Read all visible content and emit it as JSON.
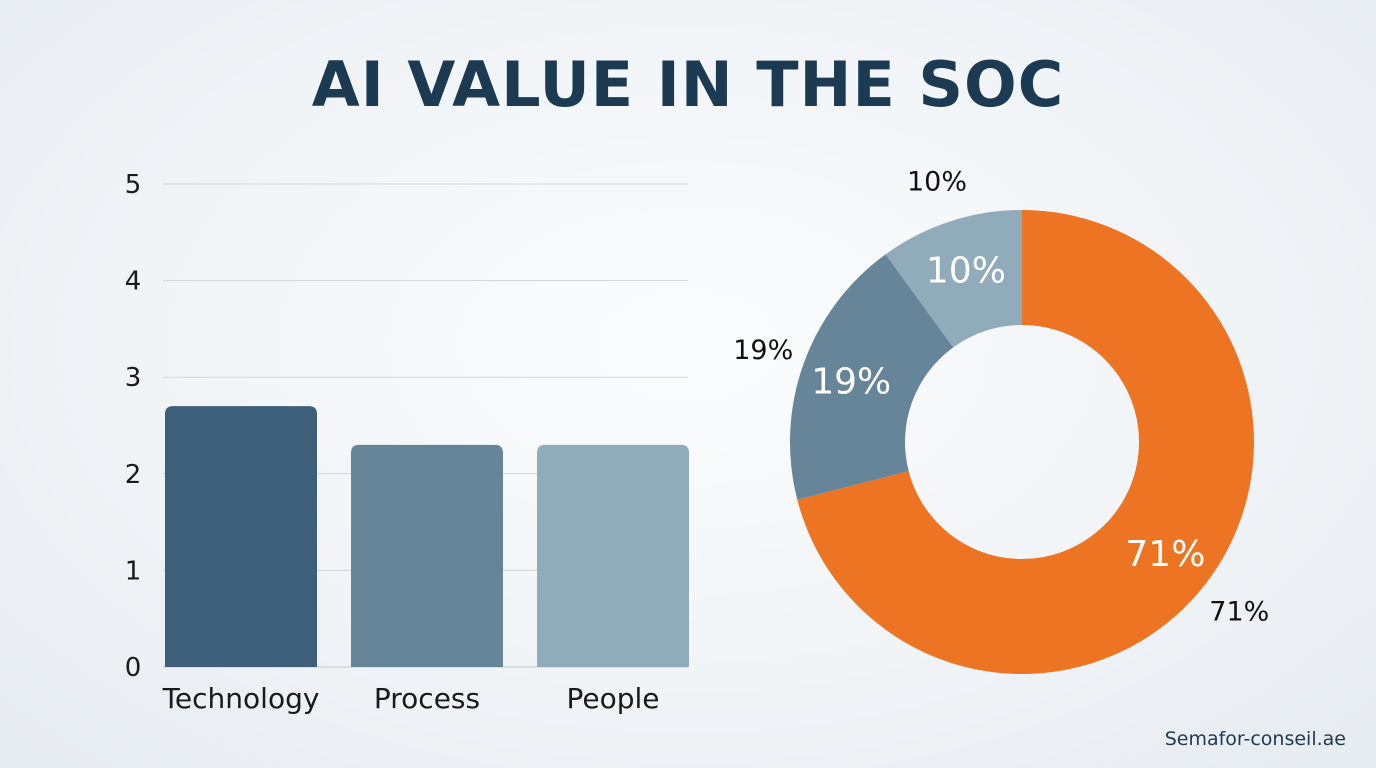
{
  "title": "AI VALUE IN THE SOC",
  "footer": "Semafor-conseil.ae",
  "colors": {
    "title": "#1c3a52",
    "bar_technology": "#3e5f7a",
    "bar_process": "#678599",
    "bar_people": "#90abba",
    "slice_orange": "#ed7423",
    "slice_mid": "#678599",
    "slice_light": "#90abba",
    "grid": "#cfd6dc"
  },
  "chart_data": [
    {
      "type": "bar",
      "categories": [
        "Technology",
        "Process",
        "People"
      ],
      "values": [
        2.7,
        2.3,
        2.3
      ],
      "ylim": [
        0,
        5
      ],
      "yticks": [
        "0",
        "1",
        "2",
        "3",
        "4",
        "5"
      ],
      "grid": true,
      "title": "",
      "xlabel": "",
      "ylabel": ""
    },
    {
      "type": "pie",
      "donut": true,
      "values": [
        71,
        19,
        10
      ],
      "inner_labels": [
        "71%",
        "19%",
        "10%"
      ],
      "outer_labels": [
        "71%",
        "19%",
        "10%"
      ]
    }
  ]
}
